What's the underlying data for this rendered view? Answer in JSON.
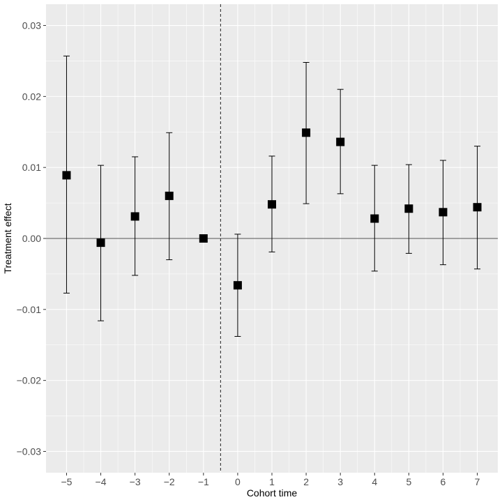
{
  "chart_data": {
    "type": "scatter",
    "subtype": "point-estimates-with-error-bars",
    "title": "",
    "xlabel": "Cohort time",
    "ylabel": "Treatment effect",
    "xlim": [
      -5.6,
      7.6
    ],
    "ylim": [
      -0.033,
      0.033
    ],
    "x_ticks": [
      -5,
      -4,
      -3,
      -2,
      -1,
      0,
      1,
      2,
      3,
      4,
      5,
      6,
      7
    ],
    "x_tick_labels": [
      "−5",
      "−4",
      "−3",
      "−2",
      "−1",
      "0",
      "1",
      "2",
      "3",
      "4",
      "5",
      "6",
      "7"
    ],
    "y_ticks": [
      -0.03,
      -0.02,
      -0.01,
      0.0,
      0.01,
      0.02,
      0.03
    ],
    "y_tick_labels": [
      "−0.03",
      "−0.02",
      "−0.01",
      "0.00",
      "0.01",
      "0.02",
      "0.03"
    ],
    "grid": true,
    "background": "#ebebeb",
    "grid_color": "#ffffff",
    "point_color": "#000000",
    "point_shape": "square",
    "reference_lines": {
      "horizontal_y": 0.0,
      "vertical_dashed_x": -0.5
    },
    "points": [
      {
        "x": -5,
        "y": 0.0089,
        "lower": -0.0077,
        "upper": 0.0257
      },
      {
        "x": -4,
        "y": -0.0006,
        "lower": -0.0116,
        "upper": 0.0103
      },
      {
        "x": -3,
        "y": 0.0031,
        "lower": -0.0052,
        "upper": 0.0115
      },
      {
        "x": -2,
        "y": 0.006,
        "lower": -0.003,
        "upper": 0.0149
      },
      {
        "x": -1,
        "y": 0.0,
        "lower": 0.0,
        "upper": 0.0
      },
      {
        "x": 0,
        "y": -0.0066,
        "lower": -0.0138,
        "upper": 0.0006
      },
      {
        "x": 1,
        "y": 0.0048,
        "lower": -0.0019,
        "upper": 0.0116
      },
      {
        "x": 2,
        "y": 0.0149,
        "lower": 0.0049,
        "upper": 0.0248
      },
      {
        "x": 3,
        "y": 0.0136,
        "lower": 0.0063,
        "upper": 0.021
      },
      {
        "x": 4,
        "y": 0.0028,
        "lower": -0.0046,
        "upper": 0.0103
      },
      {
        "x": 5,
        "y": 0.0042,
        "lower": -0.0021,
        "upper": 0.0104
      },
      {
        "x": 6,
        "y": 0.0037,
        "lower": -0.0037,
        "upper": 0.011
      },
      {
        "x": 7,
        "y": 0.0044,
        "lower": -0.0043,
        "upper": 0.013
      }
    ]
  }
}
